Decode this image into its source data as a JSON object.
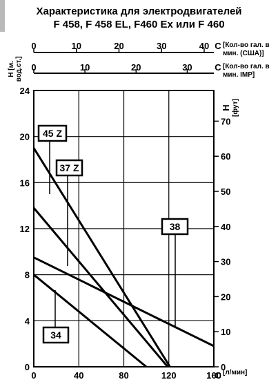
{
  "title": {
    "line1": "Характеристика для электродвигателей",
    "line2_part1": "F 458, F 458 EL, F460 Ex ",
    "line2_connector": "или",
    "line2_part2": " F 460"
  },
  "chart_data": {
    "type": "line",
    "x": {
      "label": "[л/мин]",
      "unit_letter": "C",
      "range": [
        0,
        160
      ],
      "ticks": [
        0,
        40,
        80,
        120,
        160
      ]
    },
    "x_top_us": {
      "label_line1": "[Кол-во гал. в",
      "label_line2": "мин. (США)]",
      "unit_letter": "C",
      "range": [
        0,
        42.27
      ],
      "ticks": [
        0,
        10,
        20,
        30,
        40
      ]
    },
    "x_top_imp": {
      "label_line1": "[Кол-во гал. в",
      "label_line2": "мин. IMP]",
      "unit_letter": "C",
      "range": [
        0,
        35.2
      ],
      "ticks": [
        0,
        10,
        20,
        30
      ]
    },
    "y": {
      "label_line1": "H [м.",
      "label_line2": "вод.ст.]",
      "range": [
        0,
        24
      ],
      "ticks": [
        0,
        4,
        8,
        12,
        16,
        20,
        24
      ]
    },
    "y_right": {
      "label_line1": "H",
      "label_line2": "[фут]",
      "range": [
        0,
        78.74
      ],
      "ticks": [
        0,
        10,
        20,
        30,
        40,
        50,
        60,
        70
      ]
    },
    "grid": true,
    "series": [
      {
        "name": "45 Z",
        "x": [
          0,
          121
        ],
        "y": [
          19,
          0
        ]
      },
      {
        "name": "37 Z",
        "x": [
          0,
          119
        ],
        "y": [
          13.8,
          0
        ]
      },
      {
        "name": "38",
        "x": [
          0,
          160
        ],
        "y": [
          9.5,
          1.8
        ]
      },
      {
        "name": "34",
        "x": [
          0,
          100
        ],
        "y": [
          8,
          0
        ]
      }
    ],
    "series_labels": [
      {
        "name": "45 Z",
        "text": "45 Z"
      },
      {
        "name": "37 Z",
        "text": "37 Z"
      },
      {
        "name": "38",
        "text": "38"
      },
      {
        "name": "34",
        "text": "34"
      }
    ]
  }
}
